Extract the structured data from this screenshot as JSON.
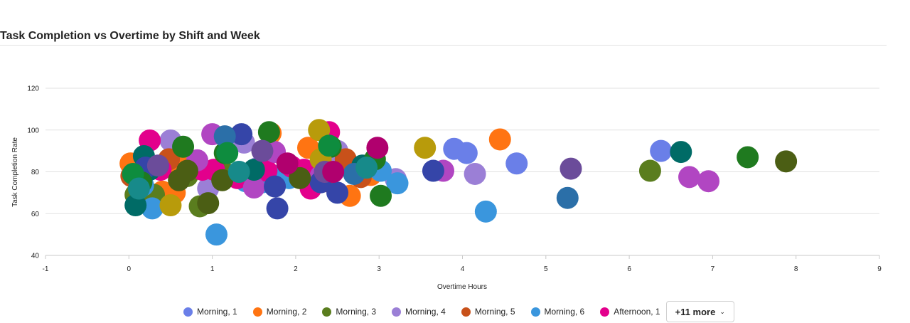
{
  "chart_data": {
    "type": "scatter",
    "title": "Task Completion vs Overtime by Shift and Week",
    "xlabel": "Overtime Hours",
    "ylabel": "Task Completion Rate",
    "xlim": [
      -1,
      9
    ],
    "ylim": [
      40,
      120
    ],
    "xticks": [
      "-1",
      "0",
      "1",
      "2",
      "3",
      "4",
      "5",
      "6",
      "7",
      "8",
      "9"
    ],
    "yticks": [
      "40",
      "60",
      "80",
      "100",
      "120"
    ],
    "grid": "horizontal",
    "legend_position": "bottom",
    "series": [
      {
        "name": "Morning, 1",
        "color": "#6A7FE8",
        "points": [
          [
            3.9,
            91
          ],
          [
            4.05,
            89
          ],
          [
            6.38,
            90
          ],
          [
            4.65,
            84
          ],
          [
            0.2,
            84
          ],
          [
            1.3,
            96
          ]
        ]
      },
      {
        "name": "Morning, 2",
        "color": "#FF7412",
        "points": [
          [
            4.45,
            95.5
          ],
          [
            1.7,
            98.5
          ],
          [
            2.15,
            91.5
          ],
          [
            2.9,
            78.5
          ],
          [
            2.65,
            68.5
          ],
          [
            0.6,
            84.5
          ],
          [
            0.62,
            79.5
          ],
          [
            0.4,
            70.5
          ],
          [
            0.55,
            70
          ],
          [
            0.02,
            84
          ]
        ]
      },
      {
        "name": "Morning, 3",
        "color": "#5A7D1E",
        "points": [
          [
            6.25,
            80.5
          ],
          [
            0.08,
            69
          ],
          [
            0.85,
            63.5
          ],
          [
            0.7,
            78
          ],
          [
            1.12,
            80.5
          ],
          [
            0.3,
            69
          ]
        ]
      },
      {
        "name": "Morning, 4",
        "color": "#9B7FD6",
        "points": [
          [
            4.15,
            79
          ],
          [
            3.2,
            76.5
          ],
          [
            0.5,
            95
          ],
          [
            1.38,
            94
          ],
          [
            1.55,
            82
          ],
          [
            2.4,
            85
          ],
          [
            2.5,
            90
          ],
          [
            0.95,
            72
          ]
        ]
      },
      {
        "name": "Morning, 5",
        "color": "#C8511A",
        "points": [
          [
            2.6,
            86
          ],
          [
            2.78,
            77.5
          ],
          [
            0.03,
            78
          ],
          [
            2.25,
            81
          ],
          [
            0.48,
            86
          ],
          [
            2.35,
            75.5
          ]
        ]
      },
      {
        "name": "Morning, 6",
        "color": "#3A96DD",
        "points": [
          [
            4.28,
            61
          ],
          [
            1.05,
            50
          ],
          [
            0.28,
            62.5
          ],
          [
            1.4,
            75.5
          ],
          [
            1.6,
            75
          ],
          [
            1.75,
            78
          ],
          [
            1.92,
            77
          ],
          [
            3.22,
            74.5
          ],
          [
            3.02,
            80.5
          ],
          [
            0.17,
            73.5
          ]
        ]
      },
      {
        "name": "Afternoon, 1",
        "color": "#E3008C",
        "points": [
          [
            0.25,
            95
          ],
          [
            0.38,
            81
          ],
          [
            0.88,
            81
          ],
          [
            1.02,
            81
          ],
          [
            1.3,
            77
          ],
          [
            1.65,
            80.5
          ],
          [
            1.95,
            82.5
          ],
          [
            2.1,
            81
          ],
          [
            2.18,
            72
          ],
          [
            2.4,
            99
          ]
        ]
      },
      {
        "name": "",
        "color": "#B146C2",
        "points": [
          [
            3.77,
            80.5
          ],
          [
            6.72,
            77.5
          ],
          [
            6.95,
            75.5
          ],
          [
            1,
            98
          ],
          [
            1.75,
            89.5
          ],
          [
            0.82,
            85.5
          ],
          [
            1.5,
            72.5
          ],
          [
            2.3,
            78
          ]
        ]
      },
      {
        "name": "",
        "color": "#006B66",
        "points": [
          [
            6.62,
            89.5
          ],
          [
            0.08,
            64
          ],
          [
            1.5,
            81
          ],
          [
            0.25,
            81
          ],
          [
            2.8,
            83
          ],
          [
            0.18,
            87.5
          ]
        ]
      },
      {
        "name": "",
        "color": "#3545A8",
        "points": [
          [
            3.65,
            80.5
          ],
          [
            1.78,
            62.5
          ],
          [
            1.75,
            73
          ],
          [
            2.5,
            70
          ],
          [
            1.35,
            98
          ],
          [
            2.3,
            75
          ],
          [
            0.2,
            82
          ]
        ]
      },
      {
        "name": "",
        "color": "#1F7A1F",
        "points": [
          [
            7.42,
            87
          ],
          [
            3.02,
            68.5
          ],
          [
            1.68,
            99
          ],
          [
            2.42,
            92
          ],
          [
            0.65,
            92
          ],
          [
            0.15,
            75
          ],
          [
            1.15,
            89
          ],
          [
            2.95,
            86
          ]
        ]
      },
      {
        "name": "",
        "color": "#4B5E14",
        "points": [
          [
            7.88,
            85
          ],
          [
            0.95,
            65
          ],
          [
            1.12,
            76
          ],
          [
            0.6,
            76
          ],
          [
            2.05,
            77
          ],
          [
            0.7,
            80.5
          ]
        ]
      },
      {
        "name": "",
        "color": "#B89B0B",
        "points": [
          [
            3.55,
            91.5
          ],
          [
            2.28,
            100
          ],
          [
            0.5,
            64
          ],
          [
            2.3,
            86
          ]
        ]
      },
      {
        "name": "",
        "color": "#6B4C9A",
        "points": [
          [
            5.3,
            81.5
          ],
          [
            1.6,
            90
          ],
          [
            2.35,
            80
          ],
          [
            0.35,
            83
          ]
        ]
      },
      {
        "name": "",
        "color": "#2B6FA8",
        "points": [
          [
            5.26,
            67.5
          ],
          [
            1.15,
            97
          ],
          [
            2.7,
            79
          ]
        ]
      },
      {
        "name": "",
        "color": "#B0006E",
        "points": [
          [
            2.98,
            91.5
          ],
          [
            2.45,
            80
          ],
          [
            1.9,
            84
          ]
        ]
      },
      {
        "name": "",
        "color": "#0E8C3E",
        "points": [
          [
            1.18,
            89
          ],
          [
            2.4,
            92.5
          ],
          [
            0.05,
            79
          ]
        ]
      },
      {
        "name": "",
        "color": "#178A8A",
        "points": [
          [
            1.32,
            80
          ],
          [
            0.12,
            72
          ],
          [
            2.85,
            82
          ]
        ]
      }
    ]
  },
  "legend": {
    "items": [
      {
        "label": "Morning, 1",
        "color": "#6A7FE8"
      },
      {
        "label": "Morning, 2",
        "color": "#FF7412"
      },
      {
        "label": "Morning, 3",
        "color": "#5A7D1E"
      },
      {
        "label": "Morning, 4",
        "color": "#9B7FD6"
      },
      {
        "label": "Morning, 5",
        "color": "#C8511A"
      },
      {
        "label": "Morning, 6",
        "color": "#3A96DD"
      },
      {
        "label": "Afternoon, 1",
        "color": "#E3008C"
      }
    ],
    "more_label": "+11 more",
    "more_icon": "chevron-down-icon"
  }
}
